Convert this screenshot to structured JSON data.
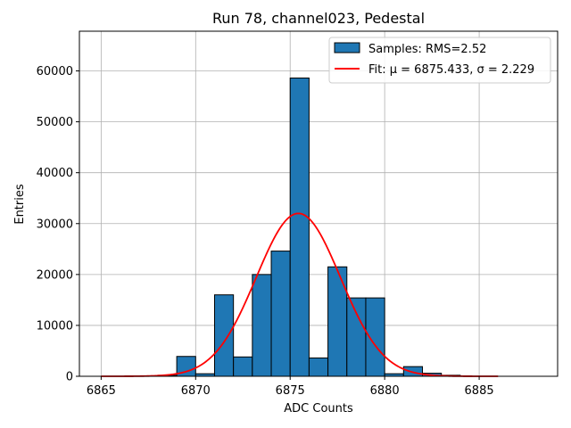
{
  "chart_data": {
    "type": "bar",
    "title": "Run 78, channel023, Pedestal",
    "xlabel": "ADC Counts",
    "ylabel": "Entries",
    "xlim": [
      6863.85,
      6889.15
    ],
    "ylim": [
      0,
      67800
    ],
    "grid": true,
    "legend_position": "top-right",
    "x_ticks": [
      6865,
      6870,
      6875,
      6880,
      6885
    ],
    "y_ticks": [
      0,
      10000,
      20000,
      30000,
      40000,
      50000,
      60000
    ],
    "x_tick_labels": [
      "6865",
      "6870",
      "6875",
      "6880",
      "6885"
    ],
    "y_tick_labels": [
      "0",
      "10000",
      "20000",
      "30000",
      "40000",
      "50000",
      "60000"
    ],
    "histogram": {
      "name": "Samples: RMS=2.52",
      "color": "#1f77b4",
      "edgecolor": "#000000",
      "bins": [
        {
          "x0": 6865,
          "x1": 6866,
          "value": 0
        },
        {
          "x0": 6866,
          "x1": 6867,
          "value": 0
        },
        {
          "x0": 6867,
          "x1": 6868,
          "value": 0
        },
        {
          "x0": 6868,
          "x1": 6869,
          "value": 200
        },
        {
          "x0": 6869,
          "x1": 6870,
          "value": 3900
        },
        {
          "x0": 6870,
          "x1": 6871,
          "value": 500
        },
        {
          "x0": 6871,
          "x1": 6872,
          "value": 16000
        },
        {
          "x0": 6872,
          "x1": 6873,
          "value": 3800
        },
        {
          "x0": 6873,
          "x1": 6874,
          "value": 20000
        },
        {
          "x0": 6874,
          "x1": 6875,
          "value": 24600
        },
        {
          "x0": 6875,
          "x1": 6876,
          "value": 58600
        },
        {
          "x0": 6876,
          "x1": 6877,
          "value": 3600
        },
        {
          "x0": 6877,
          "x1": 6878,
          "value": 21500
        },
        {
          "x0": 6878,
          "x1": 6879,
          "value": 15400
        },
        {
          "x0": 6879,
          "x1": 6880,
          "value": 15400
        },
        {
          "x0": 6880,
          "x1": 6881,
          "value": 500
        },
        {
          "x0": 6881,
          "x1": 6882,
          "value": 1900
        },
        {
          "x0": 6882,
          "x1": 6883,
          "value": 600
        },
        {
          "x0": 6883,
          "x1": 6884,
          "value": 200
        },
        {
          "x0": 6884,
          "x1": 6885,
          "value": 0
        }
      ]
    },
    "fit": {
      "name": "Fit: μ = 6875.433, σ = 2.229",
      "type": "gaussian",
      "mu": 6875.433,
      "sigma": 2.229,
      "amplitude": 32000,
      "x_range": [
        6865,
        6886
      ],
      "color": "#ff0000"
    }
  }
}
